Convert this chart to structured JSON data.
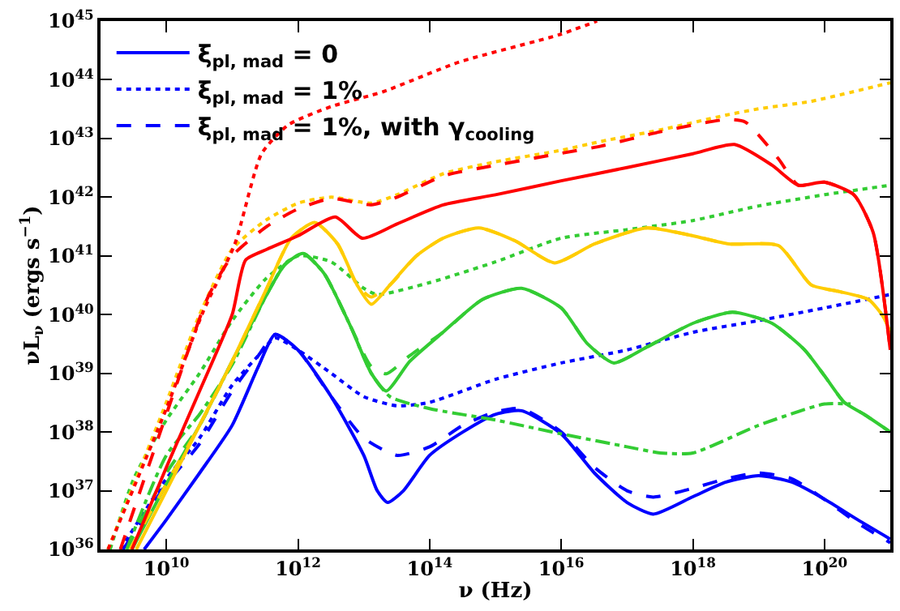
{
  "chart_data": {
    "type": "line",
    "xlabel": "ν (Hz)",
    "ylabel": "νL$_{ν}$ (ergs s$^{−1}$)",
    "log": "xy",
    "legend": "top left",
    "xlim": [
      1000000000.0,
      1e+21
    ],
    "ylim": [
      1e+36,
      1e+45
    ],
    "xticks": [
      {
        "value": 10000000000.0,
        "label": "10$^{10}$"
      },
      {
        "value": 1000000000000.0,
        "label": "10$^{12}$"
      },
      {
        "value": 100000000000000.0,
        "label": "10$^{14}$"
      },
      {
        "value": 1e+16,
        "label": "10$^{16}$"
      },
      {
        "value": 1e+18,
        "label": "10$^{18}$"
      },
      {
        "value": 1e+20,
        "label": "10$^{20}$"
      }
    ],
    "yticks": [
      {
        "value": 1e+36,
        "label": "10$^{36}$"
      },
      {
        "value": 1e+37,
        "label": "10$^{37}$"
      },
      {
        "value": 1e+38,
        "label": "10$^{38}$"
      },
      {
        "value": 1e+39,
        "label": "10$^{39}$"
      },
      {
        "value": 1e+40,
        "label": "10$^{40}$"
      },
      {
        "value": 1e+41,
        "label": "10$^{41}$"
      },
      {
        "value": 1e+42,
        "label": "10$^{42}$"
      },
      {
        "value": 1e+43,
        "label": "10$^{43}$"
      },
      {
        "value": 1e+44,
        "label": "10$^{44}$"
      },
      {
        "value": 1e+45,
        "label": "10$^{45}$"
      }
    ],
    "series": [
      {
        "name": "ξ$_{pl, mad}$ = 0",
        "color": "#0000ff",
        "line_style": "solid",
        "x": [
          4600000000.0,
          10000000000.0,
          32000000000.0,
          100000000000.0,
          250000000000.0,
          450000000000.0,
          1000000000000.0,
          3200000000000.0,
          10000000000000.0,
          16000000000000.0,
          23000000000000.0,
          40000000000000.0,
          100000000000000.0,
          320000000000000.0,
          1000000000000000.0,
          2500000000000000.0,
          1e+16,
          3.2e+16,
          1e+17,
          2.5e+17,
          1e+18,
          3.2e+18,
          1e+19,
          3.2e+19,
          1e+20,
          3.2e+20,
          1e+21
        ],
        "values": [
          1e+36,
          3.2e+36,
          2e+37,
          1.3e+38,
          1.3e+39,
          4.6e+39,
          2.5e+39,
          4e+38,
          4e+37,
          1e+37,
          6.3e+36,
          1e+37,
          4e+37,
          1e+38,
          2e+38,
          2.3e+38,
          9.3e+37,
          2e+37,
          6.3e+36,
          4e+36,
          7.9e+36,
          1.4e+37,
          1.8e+37,
          1.4e+37,
          7.2e+36,
          3.2e+36,
          1.5e+36
        ]
      },
      {
        "name": "ξ$_{pl, mad}$ = 1%",
        "color": "#0000ff",
        "line_style": "dotted",
        "x": [
          2000000000.0,
          10000000000.0,
          32000000000.0,
          100000000000.0,
          250000000000.0,
          450000000000.0,
          1000000000000.0,
          3200000000000.0,
          10000000000000.0,
          32000000000000.0,
          100000000000000.0,
          1000000000000000.0,
          1e+16,
          1e+17,
          1e+18,
          1e+19,
          1e+20,
          1e+21
        ],
        "values": [
          1e+36,
          1.6e+37,
          7.9e+37,
          6.3e+38,
          2e+39,
          4e+39,
          2.5e+39,
          1e+39,
          4e+38,
          2.8e+38,
          3.2e+38,
          7.9e+38,
          1.5e+39,
          2.5e+39,
          5e+39,
          7.9e+39,
          1.3e+40,
          2.2e+40
        ]
      },
      {
        "name": "ξ$_{pl, mad}$ = 1%, with γ$_{cooling}$",
        "color": "#0000ff",
        "line_style": "dashed",
        "x": [
          2200000000.0,
          5000000000.0,
          10000000000.0,
          32000000000.0,
          100000000000.0,
          250000000000.0,
          450000000000.0,
          1000000000000.0,
          3200000000000.0,
          10000000000000.0,
          32000000000000.0,
          100000000000000.0,
          320000000000000.0,
          1000000000000000.0,
          2500000000000000.0,
          1e+16,
          3.2e+16,
          1e+17,
          2.5e+17,
          1e+18,
          3.2e+18,
          1e+19,
          3.2e+19,
          1e+20,
          3.2e+20,
          1e+21
        ],
        "values": [
          1e+36,
          4e+36,
          1.3e+37,
          6.3e+37,
          5e+38,
          2e+39,
          4.6e+39,
          2.5e+39,
          4e+38,
          7.9e+37,
          4e+37,
          5.6e+37,
          1.3e+38,
          2.2e+38,
          2.5e+38,
          1e+38,
          2.5e+37,
          1e+37,
          7.8e+36,
          1.1e+37,
          1.6e+37,
          2e+37,
          1.6e+37,
          7.1e+36,
          2.8e+36,
          1.3e+36
        ]
      },
      {
        "color": "#33cc33",
        "line_style": "solid",
        "x": [
          3000000000.0,
          10000000000.0,
          32000000000.0,
          100000000000.0,
          320000000000.0,
          630000000000.0,
          1200000000000.0,
          2500000000000.0,
          6300000000000.0,
          13000000000000.0,
          22000000000000.0,
          50000000000000.0,
          160000000000000.0,
          630000000000000.0,
          2500000000000000.0,
          1e+16,
          2.5e+16,
          6.3e+16,
          2e+17,
          1e+18,
          4e+18,
          1.6e+19,
          5e+19,
          1e+20,
          2e+20,
          4e+20,
          1e+21
        ],
        "values": [
          1e+36,
          1.3e+37,
          1.3e+38,
          1.6e+39,
          2e+40,
          7.1e+40,
          1.1e+41,
          5e+40,
          6.3e+39,
          1e+39,
          5e+38,
          1.6e+39,
          5e+39,
          1.8e+40,
          2.8e+40,
          1.3e+40,
          3.2e+39,
          1.5e+39,
          2.8e+39,
          7.1e+39,
          1.1e+40,
          7.1e+39,
          2.5e+39,
          9.1e+38,
          3.2e+38,
          2e+38,
          1e+38
        ]
      },
      {
        "color": "#33cc33",
        "line_style": "dotted",
        "x": [
          1400000000.0,
          3200000000.0,
          10000000000.0,
          32000000000.0,
          100000000000.0,
          320000000000.0,
          1000000000000.0,
          3200000000000.0,
          10000000000000.0,
          16000000000000.0,
          100000000000000.0,
          1000000000000000.0,
          1e+16,
          1e+17,
          1e+18,
          1e+19,
          1e+20,
          1e+21
        ],
        "values": [
          1e+36,
          1.6e+37,
          1.6e+38,
          1e+39,
          7.9e+39,
          4e+40,
          1e+41,
          7.9e+40,
          2.8e+40,
          2.2e+40,
          3.5e+40,
          7.9e+40,
          2e+41,
          2.8e+41,
          4e+41,
          7.1e+41,
          1.1e+42,
          1.6e+42
        ]
      },
      {
        "color": "#33cc33",
        "line_style": "dashed",
        "x": [
          2500000000.0,
          10000000000.0,
          32000000000.0,
          100000000000.0,
          320000000000.0,
          630000000000.0,
          1200000000000.0,
          2500000000000.0,
          6300000000000.0,
          13000000000000.0,
          22000000000000.0,
          50000000000000.0,
          160000000000000.0,
          630000000000000.0,
          2500000000000000.0,
          1e+16,
          2.5e+16,
          6.3e+16,
          2e+17,
          1e+18,
          4e+18,
          1.6e+19,
          5e+19,
          1e+20,
          2e+20,
          4e+20,
          1e+21
        ],
        "values": [
          1e+36,
          2e+37,
          1.3e+38,
          1.6e+39,
          2e+40,
          7.1e+40,
          1.1e+41,
          5e+40,
          6.3e+39,
          1.3e+39,
          9.8e+38,
          2e+39,
          5e+39,
          1.8e+40,
          2.8e+40,
          1.3e+40,
          3.2e+39,
          1.5e+39,
          2.8e+39,
          7.1e+39,
          1.1e+40,
          7.1e+39,
          2.5e+39,
          9.1e+38,
          3.2e+38,
          2e+38,
          1e+38
        ]
      },
      {
        "color": "#33cc33",
        "line_style": "dashdot",
        "x": [
          2500000000.0,
          10000000000.0,
          32000000000.0,
          100000000000.0,
          320000000000.0,
          630000000000.0,
          1200000000000.0,
          2500000000000.0,
          6300000000000.0,
          13000000000000.0,
          25000000000000.0,
          100000000000000.0,
          1000000000000000.0,
          1e+16,
          1e+17,
          3.2e+17,
          1e+18,
          1e+19,
          1e+20,
          2.5e+20
        ],
        "values": [
          1e+36,
          4e+37,
          2e+38,
          1.4e+39,
          2e+40,
          7.1e+40,
          1.1e+41,
          5e+40,
          6.3e+39,
          1e+39,
          4e+38,
          2.5e+38,
          1.6e+38,
          9.3e+37,
          5.6e+37,
          4.4e+37,
          4.4e+37,
          1.3e+38,
          3e+38,
          3e+38
        ]
      },
      {
        "color": "#ffcc00",
        "line_style": "solid",
        "x": [
          3500000000.0,
          10000000000.0,
          32000000000.0,
          100000000000.0,
          320000000000.0,
          790000000000.0,
          1800000000000.0,
          4000000000000.0,
          7900000000000.0,
          13000000000000.0,
          25000000000000.0,
          63000000000000.0,
          160000000000000.0,
          560000000000000.0,
          2000000000000000.0,
          7900000000000000.0,
          3.2e+16,
          2e+17,
          1e+18,
          3.5e+18,
          2e+19,
          6.3e+19,
          1.6e+20,
          4.7e+20,
          7.9e+20,
          1e+21
        ],
        "values": [
          1e+36,
          1e+37,
          1.3e+38,
          1.6e+39,
          2.5e+40,
          2e+41,
          3.7e+41,
          1.6e+41,
          3.2e+40,
          1.5e+40,
          3.2e+40,
          1e+41,
          2e+41,
          3e+41,
          1.8e+41,
          7.6e+40,
          1.6e+41,
          3e+41,
          2.2e+41,
          1.6e+41,
          1.5e+41,
          3.2e+40,
          2.5e+40,
          1.8e+40,
          9.1e+39,
          5e+39
        ]
      },
      {
        "color": "#ffcc00",
        "line_style": "dotted",
        "x": [
          1300000000.0,
          10000000000.0,
          32000000000.0,
          100000000000.0,
          320000000000.0,
          1000000000000.0,
          3200000000000.0,
          13000000000000.0,
          32000000000000.0,
          160000000000000.0,
          1000000000000000.0,
          1e+16,
          4e+16,
          3.2e+17,
          3.2e+18,
          1e+19,
          6.3e+19,
          1e+21
        ],
        "values": [
          1e+36,
          3.2e+38,
          1e+40,
          1.3e+41,
          4e+41,
          7.9e+41,
          1e+42,
          7.9e+41,
          1.1e+42,
          2.5e+42,
          4e+42,
          6.3e+42,
          8.9e+42,
          1.4e+43,
          2.5e+43,
          3.2e+43,
          4.3e+43,
          8.9e+43
        ]
      },
      {
        "color": "#ffcc00",
        "line_style": "dashed",
        "x": [
          2800000000.0,
          10000000000.0,
          32000000000.0,
          100000000000.0,
          320000000000.0,
          790000000000.0,
          1800000000000.0,
          4000000000000.0,
          7900000000000.0,
          13000000000000.0,
          25000000000000.0,
          63000000000000.0,
          160000000000000.0,
          560000000000000.0,
          2000000000000000.0,
          7900000000000000.0,
          3.2e+16,
          2e+17,
          1e+18,
          3.5e+18,
          2e+19,
          6.3e+19,
          1.6e+20,
          4.7e+20,
          7.9e+20,
          1e+21
        ],
        "values": [
          1e+36,
          1.3e+37,
          1.3e+38,
          1.6e+39,
          2.5e+40,
          2e+41,
          3.7e+41,
          1.6e+41,
          3.2e+40,
          2e+40,
          3.2e+40,
          1e+41,
          2e+41,
          3e+41,
          1.8e+41,
          7.6e+40,
          1.6e+41,
          3e+41,
          2.2e+41,
          1.6e+41,
          1.5e+41,
          3.2e+40,
          2.5e+40,
          1.8e+40,
          9.1e+39,
          5e+39
        ]
      },
      {
        "color": "#ff0000",
        "line_style": "solid",
        "x": [
          3000000000.0,
          10000000000.0,
          32000000000.0,
          100000000000.0,
          160000000000.0,
          340000000000.0,
          1000000000000.0,
          3700000000000.0,
          9500000000000.0,
          32000000000000.0,
          160000000000000.0,
          1000000000000000.0,
          1e+16,
          1e+17,
          1e+18,
          4.3e+18,
          1.6e+19,
          4e+19,
          1e+20,
          2.8e+20,
          5.5e+20,
          1e+21
        ],
        "values": [
          1e+36,
          2.5e+37,
          5e+38,
          1e+40,
          8.5e+40,
          1.3e+41,
          2.2e+41,
          4.6e+41,
          2e+41,
          3.5e+41,
          7.4e+41,
          1.1e+42,
          1.9e+42,
          3.2e+42,
          5.5e+42,
          7.9e+42,
          3.5e+42,
          1.6e+42,
          1.8e+42,
          1.1e+42,
          2.5e+41,
          2.5e+39
        ]
      },
      {
        "color": "#ff0000",
        "line_style": "dotted",
        "x": [
          1300000000.0,
          10000000000.0,
          36000000000.0,
          110000000000.0,
          280000000000.0,
          710000000000.0,
          3200000000000.0,
          20000000000000.0,
          280000000000000.0,
          9100000000000000.0,
          3.5e+16
        ],
        "values": [
          1e+36,
          2.5e+38,
          1.1e+40,
          1.6e+41,
          5.5e+42,
          1.7e+43,
          3.5e+43,
          6.3e+43,
          2e+44,
          5.8e+44,
          1e+45
        ]
      },
      {
        "color": "#ff0000",
        "line_style": "dashed",
        "x": [
          2000000000.0,
          10000000000.0,
          43000000000.0,
          100000000000.0,
          340000000000.0,
          1000000000000.0,
          3200000000000.0,
          13000000000000.0,
          32000000000000.0,
          160000000000000.0,
          1000000000000000.0,
          1e+16,
          4e+16,
          3.2e+17,
          3.2e+18,
          6.3e+18,
          2e+19,
          4e+19,
          1e+20,
          2.8e+20,
          5.5e+20,
          1e+21
        ],
        "values": [
          1e+36,
          2e+38,
          2e+40,
          1e+41,
          3.2e+41,
          6.3e+41,
          9.5e+41,
          7.4e+41,
          1e+42,
          2.3e+42,
          3.5e+42,
          5.6e+42,
          7.4e+42,
          1.3e+43,
          2.1e+43,
          1.9e+43,
          4.5e+42,
          1.6e+42,
          1.8e+42,
          1.1e+42,
          2.5e+41,
          2.5e+39
        ]
      }
    ]
  }
}
